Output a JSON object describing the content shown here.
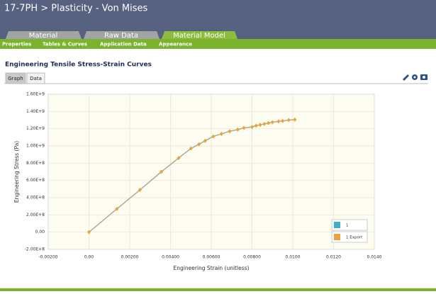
{
  "header": {
    "title": "17-7PH > Plasticity - Von Mises"
  },
  "tabs": [
    {
      "label": "Material",
      "active": false
    },
    {
      "label": "Raw Data",
      "active": false
    },
    {
      "label": "Material Model",
      "active": true
    }
  ],
  "subnav": [
    "Properties",
    "Tables & Curves",
    "Application Data",
    "Appearance"
  ],
  "section_title": "Engineering Tensile Stress-Strain Curves",
  "view_tabs": [
    "Graph",
    "Data"
  ],
  "chart_data": {
    "type": "line",
    "xlabel": "Engineering Strain (unitless)",
    "ylabel": "Engineering Stress (Pa)",
    "x": [
      0,
      0.00137,
      0.0025,
      0.00355,
      0.0044,
      0.005,
      0.0054,
      0.0057,
      0.0061,
      0.0065,
      0.0069,
      0.0073,
      0.0076,
      0.008,
      0.0082,
      0.0084,
      0.0086,
      0.0088,
      0.009,
      0.0093,
      0.0095,
      0.0098,
      0.0101
    ],
    "series": [
      {
        "name": "1",
        "color": "#3fb0c8",
        "line_color": "#a9ad8e",
        "values": [
          0,
          270000000,
          490000000,
          700000000,
          860000000,
          970000000,
          1020000000,
          1060000000,
          1110000000,
          1140000000,
          1170000000,
          1190000000,
          1210000000,
          1220000000,
          1235000000,
          1245000000,
          1255000000,
          1265000000,
          1275000000,
          1285000000,
          1290000000,
          1300000000,
          1305000000
        ]
      },
      {
        "name": "1 Export",
        "color": "#e8a33c",
        "values": [
          0,
          270000000,
          490000000,
          700000000,
          860000000,
          970000000,
          1020000000,
          1060000000,
          1110000000,
          1140000000,
          1170000000,
          1190000000,
          1210000000,
          1220000000,
          1235000000,
          1245000000,
          1255000000,
          1265000000,
          1275000000,
          1285000000,
          1290000000,
          1300000000,
          1305000000
        ]
      }
    ],
    "xlim": [
      -0.002,
      0.014
    ],
    "ylim": [
      -200000000,
      1600000000
    ],
    "xticks": [
      {
        "value": -0.002,
        "label": "-0.00200"
      },
      {
        "value": 0,
        "label": "0.00"
      },
      {
        "value": 0.002,
        "label": "0.00200"
      },
      {
        "value": 0.004,
        "label": "0.00400"
      },
      {
        "value": 0.006,
        "label": "0.00600"
      },
      {
        "value": 0.008,
        "label": "0.00800"
      },
      {
        "value": 0.01,
        "label": "0.0100"
      },
      {
        "value": 0.012,
        "label": "0.0120"
      },
      {
        "value": 0.014,
        "label": "0.0140"
      }
    ],
    "yticks": [
      {
        "value": -200000000,
        "label": "-2.00E+8"
      },
      {
        "value": 0,
        "label": "0.00"
      },
      {
        "value": 200000000,
        "label": "2.00E+8"
      },
      {
        "value": 400000000,
        "label": "4.00E+8"
      },
      {
        "value": 600000000,
        "label": "6.00E+8"
      },
      {
        "value": 800000000,
        "label": "8.00E+8"
      },
      {
        "value": 1000000000,
        "label": "1.00E+9"
      },
      {
        "value": 1200000000,
        "label": "1.20E+9"
      },
      {
        "value": 1400000000,
        "label": "1.40E+9"
      },
      {
        "value": 1600000000,
        "label": "1.60E+9"
      }
    ],
    "grid": true,
    "legend": "lower right"
  }
}
